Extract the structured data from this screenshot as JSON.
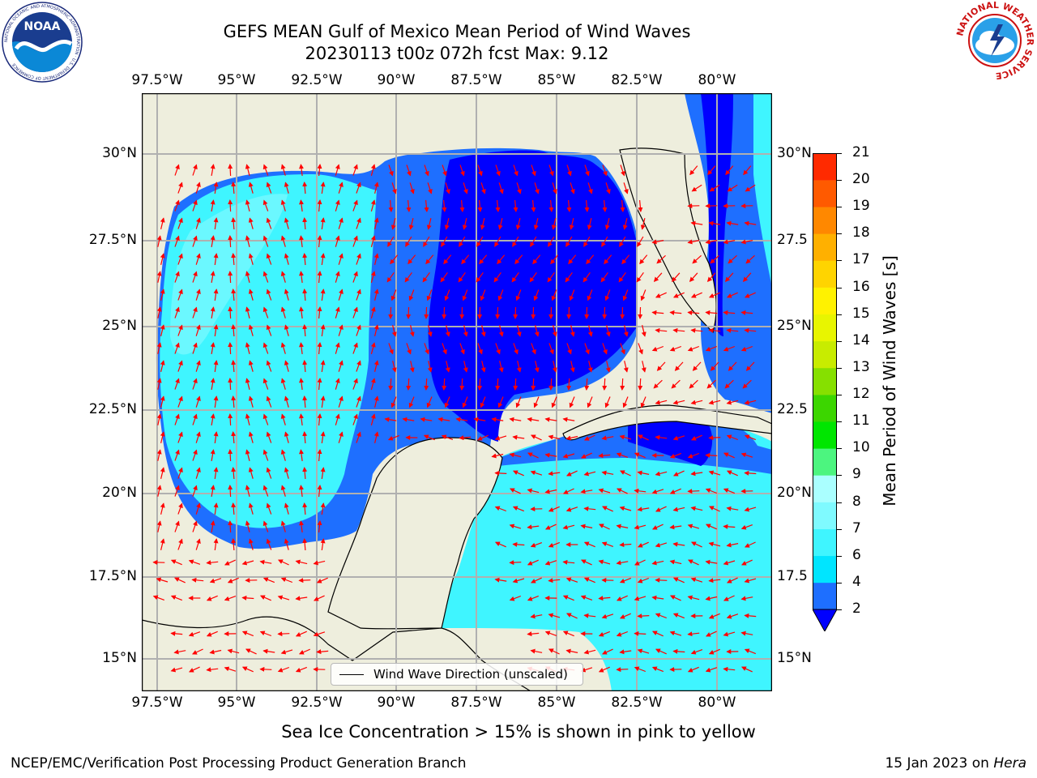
{
  "title_line1": "GEFS MEAN Gulf of Mexico Mean Period of Wind Waves",
  "title_line2": "20230113 t00z 072h fcst   Max: 9.12",
  "lon_labels": [
    "97.5°W",
    "95°W",
    "92.5°W",
    "90°W",
    "87.5°W",
    "85°W",
    "82.5°W",
    "80°W"
  ],
  "lat_labels_left": [
    "30°N",
    "27.5°N",
    "25°N",
    "22.5°N",
    "20°N",
    "17.5°N",
    "15°N"
  ],
  "lat_labels_right": [
    "30°N",
    "27.5",
    "25°N",
    "22.5",
    "20°N",
    "17.5",
    "15°N"
  ],
  "legend_label": "Wind Wave Direction (unscaled)",
  "colorbar": {
    "title": "Mean Period of Wind Waves [s]",
    "levels": [
      "2",
      "4",
      "6",
      "7",
      "8",
      "9",
      "10",
      "11",
      "12",
      "13",
      "14",
      "15",
      "16",
      "17",
      "18",
      "19",
      "20",
      "21"
    ],
    "colors": [
      "#1e6fff",
      "#00e5ff",
      "#3ff5ff",
      "#7ffaff",
      "#aaffff",
      "#4cf57f",
      "#00e600",
      "#3cd600",
      "#86e000",
      "#c8ec00",
      "#e8f500",
      "#fff200",
      "#ffd400",
      "#ffb000",
      "#ff8800",
      "#ff5a00",
      "#ff2a00",
      "#ff0000"
    ],
    "under_color": "#0000ff"
  },
  "colors": {
    "land": "#eeeedd",
    "no_data": "#ffffff",
    "period_under_2": "#0000ff",
    "period_2_4": "#1e6fff",
    "period_4_6": "#00e5ff",
    "period_6_7": "#3ff5ff",
    "period_7_8": "#7ffaff",
    "arrow": "#ff0000",
    "grid": "#b0b0b0"
  },
  "bottom_note": "Sea Ice Concentration > 15% is shown in pink to yellow",
  "footer_left": "NCEP/EMC/Verification Post Processing Product Generation Branch",
  "footer_right_date": "15 Jan 2023 on",
  "footer_right_machine": "Hera",
  "noaa_logo_text": "NOAA",
  "noaa_ring_text": "NATIONAL OCEANIC AND ATMOSPHERIC ADMINISTRATION · U.S. DEPARTMENT OF COMMERCE",
  "nws_ring_text": "NATIONAL WEATHER SERVICE"
}
